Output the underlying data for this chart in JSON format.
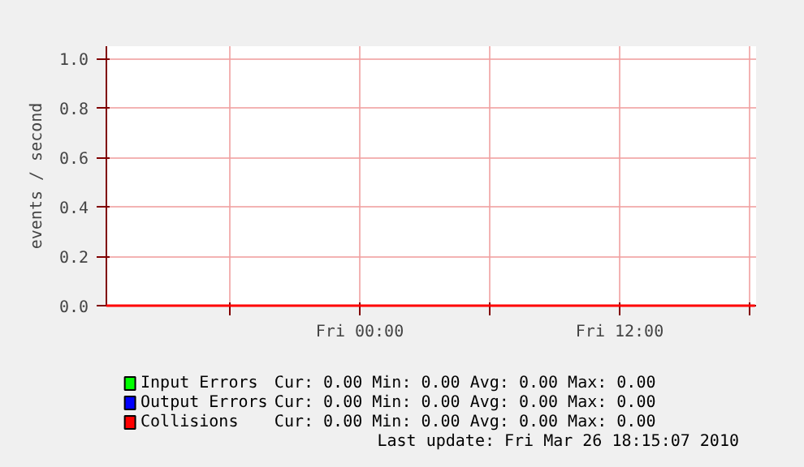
{
  "chart_data": {
    "type": "line",
    "ylabel": "events / second",
    "x": [
      "2010-03-25T12:18",
      "2010-03-26T18:15"
    ],
    "xlim": [
      "2010-03-25T12:18",
      "2010-03-26T18:18"
    ],
    "xticks": [
      {
        "value": "2010-03-25T18:00",
        "label": null
      },
      {
        "value": "2010-03-26T00:00",
        "label": "Fri 00:00"
      },
      {
        "value": "2010-03-26T06:00",
        "label": null
      },
      {
        "value": "2010-03-26T12:00",
        "label": "Fri 12:00"
      },
      {
        "value": "2010-03-26T18:00",
        "label": null
      }
    ],
    "ylim": [
      0,
      1.05
    ],
    "yticks": [
      {
        "value": 0,
        "label": "0.0"
      },
      {
        "value": 0.2,
        "label": "0.2"
      },
      {
        "value": 0.4,
        "label": "0.4"
      },
      {
        "value": 0.6,
        "label": "0.6"
      },
      {
        "value": 0.8,
        "label": "0.8"
      },
      {
        "value": 1.0,
        "label": "1.0"
      }
    ],
    "grid": true,
    "legend": "bottom",
    "series": [
      {
        "name": "Input Errors",
        "color": "#00ff00",
        "values": [
          null,
          null
        ]
      },
      {
        "name": "Output Errors",
        "color": "#0000ff",
        "values": [
          null,
          null
        ]
      },
      {
        "name": "Collisions",
        "color": "#ff0000",
        "values": [
          0,
          0
        ]
      }
    ],
    "annotations": [
      "Cur:     0.00   Min:     0.00   Avg:     0.00   Max:     0.00",
      "Cur:     0.00   Min:     0.00   Avg:     0.00   Max:     0.00",
      "Cur:     0.00   Min:     0.00   Avg:     0.00   Max:     0.00",
      "Last update: Fri Mar 26 18:15:07 2010"
    ]
  }
}
